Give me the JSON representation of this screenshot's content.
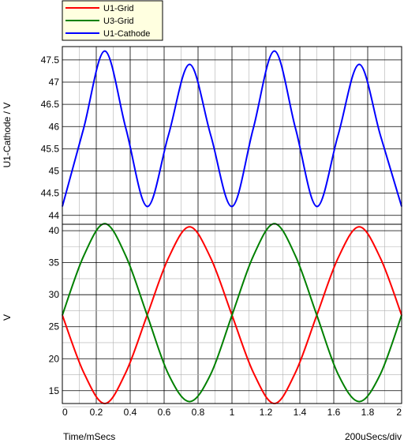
{
  "chart_data": [
    {
      "type": "line",
      "panel": "top",
      "ylabel": "U1-Cathode / V",
      "xlim": [
        0,
        2
      ],
      "ylim": [
        43.8,
        47.8
      ],
      "yticks": [
        "43.8",
        "44",
        "44.5",
        "45",
        "45.5",
        "46",
        "46.5",
        "47",
        "47.5",
        "47.8"
      ],
      "yticks_labeled": [
        "44",
        "44.5",
        "45",
        "45.5",
        "46",
        "46.5",
        "47",
        "47.5"
      ],
      "grid": true,
      "series": [
        {
          "name": "U1-Cathode",
          "color": "#0000ff",
          "x": [
            0,
            0.125,
            0.25,
            0.375,
            0.5,
            0.625,
            0.75,
            0.875,
            1.0,
            1.125,
            1.25,
            1.375,
            1.5,
            1.625,
            1.75,
            1.875,
            2.0
          ],
          "y": [
            44.2,
            45.95,
            47.7,
            45.95,
            44.2,
            45.8,
            47.4,
            45.8,
            44.2,
            45.95,
            47.7,
            45.95,
            44.2,
            45.8,
            47.4,
            45.8,
            44.2
          ]
        }
      ]
    },
    {
      "type": "line",
      "panel": "bottom",
      "ylabel": "V",
      "xlabel": "Time/mSecs",
      "xscale_label": "200uSecs/div",
      "xlim": [
        0,
        2
      ],
      "ylim": [
        13,
        41
      ],
      "xticks": [
        "0",
        "0.2",
        "0.4",
        "0.6",
        "0.8",
        "1",
        "1.2",
        "1.4",
        "1.6",
        "1.8",
        "2"
      ],
      "yticks": [
        "15",
        "20",
        "25",
        "30",
        "35",
        "40"
      ],
      "grid": true,
      "series": [
        {
          "name": "U1-Grid",
          "color": "#ff0000",
          "x": [
            0,
            0.125,
            0.25,
            0.375,
            0.5,
            0.625,
            0.75,
            0.875,
            1.0,
            1.125,
            1.25,
            1.375,
            1.5,
            1.625,
            1.75,
            1.875,
            2.0
          ],
          "y": [
            26.8,
            17.9,
            13.0,
            17.9,
            26.8,
            35.7,
            40.6,
            35.7,
            26.8,
            17.9,
            13.0,
            17.9,
            26.8,
            35.7,
            40.6,
            35.7,
            26.8
          ]
        },
        {
          "name": "U3-Grid",
          "color": "#008000",
          "x": [
            0,
            0.125,
            0.25,
            0.375,
            0.5,
            0.625,
            0.75,
            0.875,
            1.0,
            1.125,
            1.25,
            1.375,
            1.5,
            1.625,
            1.75,
            1.875,
            2.0
          ],
          "y": [
            26.8,
            36.0,
            41.1,
            36.0,
            26.8,
            17.6,
            13.3,
            17.6,
            26.8,
            36.0,
            41.1,
            36.0,
            26.8,
            17.6,
            13.3,
            17.6,
            26.8
          ]
        }
      ]
    }
  ],
  "legend": {
    "placement": "top-left",
    "entries": [
      {
        "label": "U1-Grid",
        "color": "#ff0000"
      },
      {
        "label": "U3-Grid",
        "color": "#008000"
      },
      {
        "label": "U1-Cathode",
        "color": "#0000ff"
      }
    ]
  }
}
